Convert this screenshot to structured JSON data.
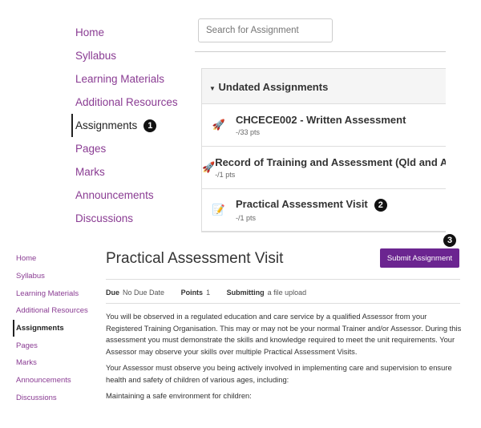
{
  "top": {
    "nav": [
      {
        "label": "Home",
        "active": false
      },
      {
        "label": "Syllabus",
        "active": false
      },
      {
        "label": "Learning Materials",
        "active": false
      },
      {
        "label": "Additional Resources",
        "active": false
      },
      {
        "label": "Assignments",
        "active": true
      },
      {
        "label": "Pages",
        "active": false
      },
      {
        "label": "Marks",
        "active": false
      },
      {
        "label": "Announcements",
        "active": false
      },
      {
        "label": "Discussions",
        "active": false
      }
    ],
    "badge1": "1",
    "search_placeholder": "Search for Assignment",
    "group_title": "Undated Assignments",
    "assignments": [
      {
        "title": "CHCECE002 - Written Assessment",
        "points": "-/33 pts",
        "icon": "quiz-rocket-icon"
      },
      {
        "title": "Record of Training and Assessment (Qld and ACT)",
        "points": "-/1 pts",
        "icon": "quiz-rocket-icon"
      },
      {
        "title": "Practical Assessment Visit",
        "points": "-/1 pts",
        "icon": "assignment-icon"
      }
    ],
    "badge2": "2"
  },
  "bottom": {
    "nav": [
      {
        "label": "Home"
      },
      {
        "label": "Syllabus"
      },
      {
        "label": "Learning Materials"
      },
      {
        "label": "Additional Resources"
      },
      {
        "label": "Assignments"
      },
      {
        "label": "Pages"
      },
      {
        "label": "Marks"
      },
      {
        "label": "Announcements"
      },
      {
        "label": "Discussions"
      }
    ],
    "title": "Practical Assessment Visit",
    "submit_label": "Submit Assignment",
    "badge3": "3",
    "due_label": "Due",
    "due_value": "No Due Date",
    "points_label": "Points",
    "points_value": "1",
    "submitting_label": "Submitting",
    "submitting_value": "a file upload",
    "paragraphs": [
      "You will be observed in a regulated education and care service by a qualified Assessor from your Registered Training Organisation. This may or may not be your normal Trainer and/or Assessor. During this assessment you must demonstrate the skills and knowledge required to meet the unit requirements. Your Assessor may observe your skills over multiple Practical Assessment Visits.",
      "Your Assessor must observe you being actively involved in implementing care and supervision to ensure health and safety of children of various ages, including:",
      "Maintaining a safe environment for children:"
    ]
  },
  "colors": {
    "link": "#8a3c93",
    "button": "#6b2590"
  }
}
